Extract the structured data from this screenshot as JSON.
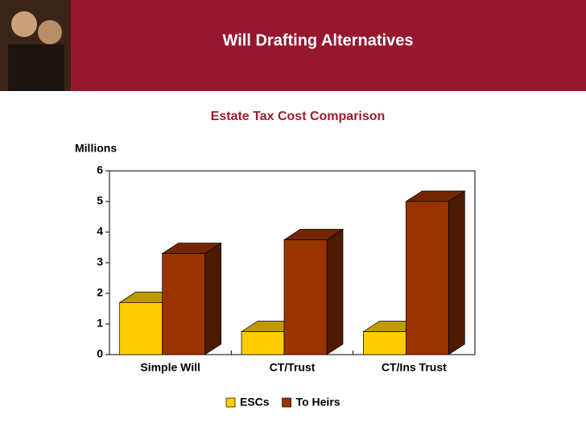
{
  "header": {
    "title": "Will Drafting Alternatives"
  },
  "chart_data": {
    "type": "bar",
    "title": "Estate Tax Cost Comparison",
    "y_label": "Millions",
    "categories": [
      "Simple Will",
      "CT/Trust",
      "CT/Ins Trust"
    ],
    "series": [
      {
        "name": "ESCs",
        "color": "#ffcc00",
        "values": [
          1.7,
          0.75,
          0.75
        ]
      },
      {
        "name": "To Heirs",
        "color": "#993300",
        "values": [
          3.3,
          3.75,
          5.0
        ]
      }
    ],
    "ylim": [
      0,
      6
    ],
    "yticks": [
      0,
      1,
      2,
      3,
      4,
      5,
      6
    ],
    "legend": "bottom"
  }
}
